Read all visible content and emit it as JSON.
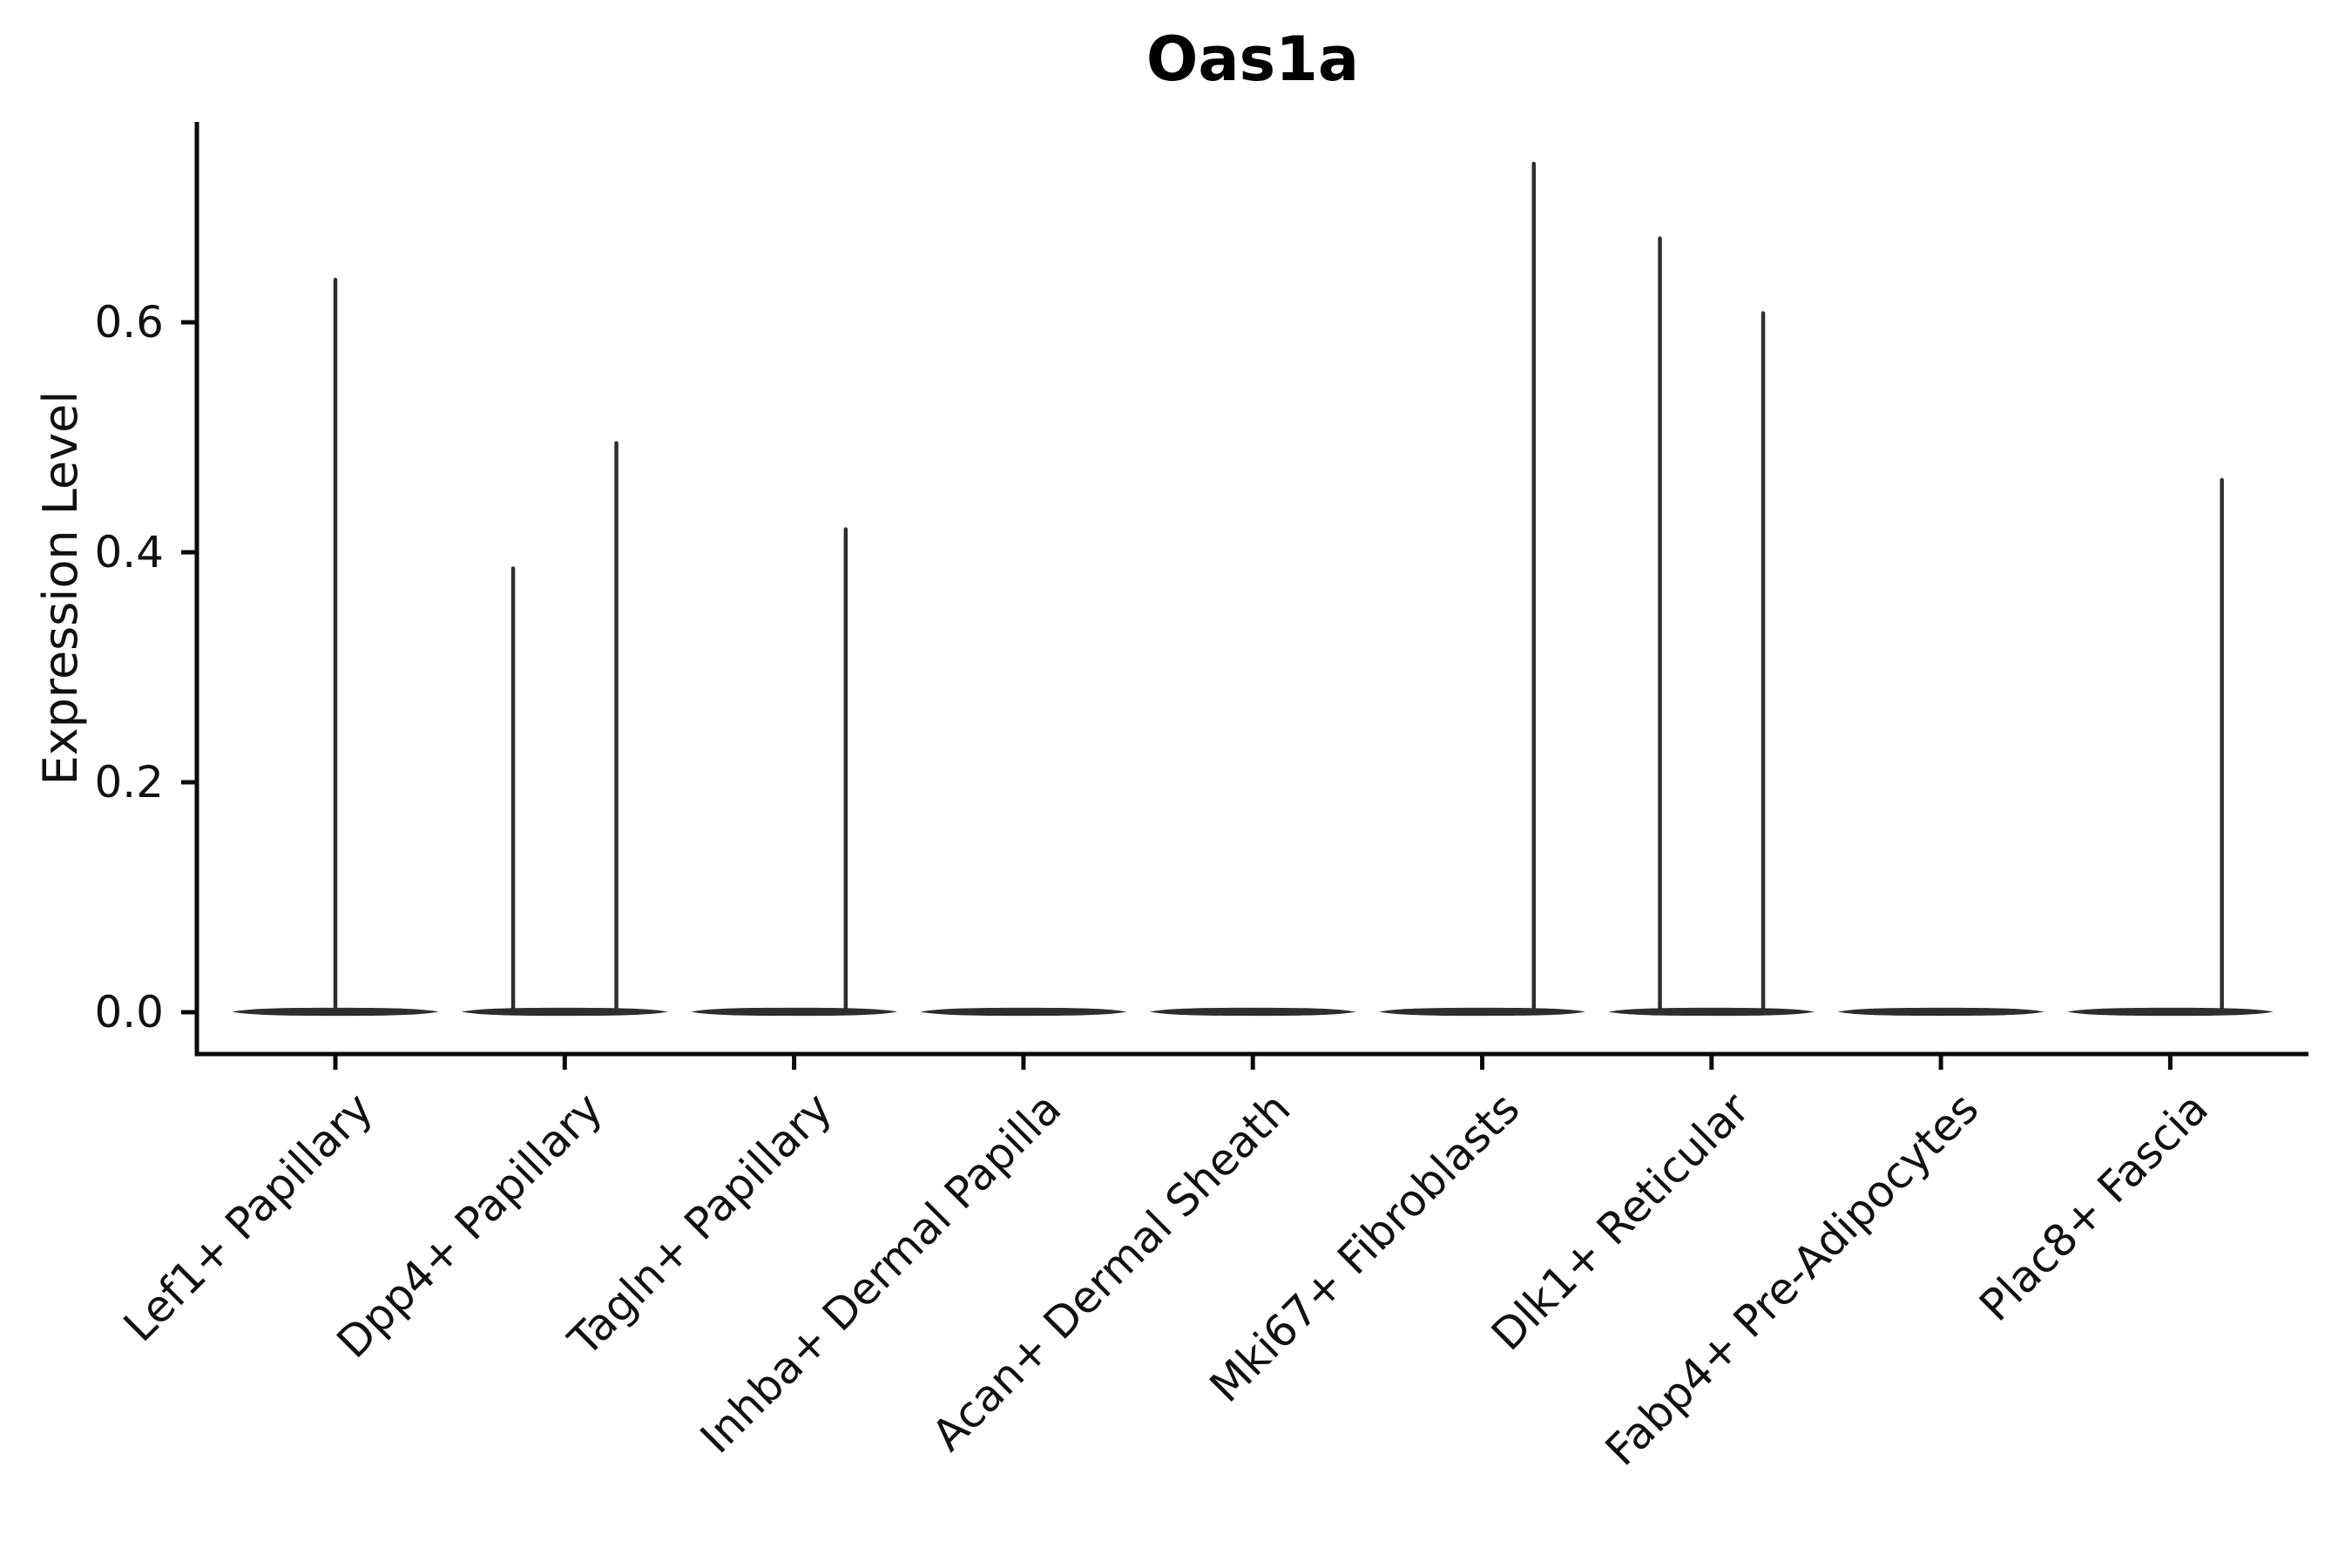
{
  "title": "Oas1a",
  "axes": {
    "ylabel": "Expression Level",
    "ytick_labels": [
      "0.0",
      "0.2",
      "0.4",
      "0.6"
    ]
  },
  "chart_data": {
    "type": "violin",
    "title": "Oas1a",
    "xlabel": "",
    "ylabel": "Expression Level",
    "ylim": [
      -0.036,
      0.774
    ],
    "yticks": [
      0.0,
      0.2,
      0.4,
      0.6
    ],
    "ytick_labels": [
      "0.0",
      "0.2",
      "0.4",
      "0.6"
    ],
    "grid": false,
    "legend": null,
    "categories": [
      "Lef1+ Papillary",
      "Dpp4+ Papillary",
      "Tagln+ Papillary",
      "Inhba+ Dermal Papilla",
      "Acan+ Dermal Sheath",
      "Mki67+ Fibroblasts",
      "Dlk1+ Reticular",
      "Fabp4+ Pre-Adipocytes",
      "Plac8+ Fascia"
    ],
    "series": [
      {
        "category": "Lef1+ Papillary",
        "baseline_value": 0,
        "baseline_halfwidth": 0.45,
        "spikes": [
          {
            "offset": 0.0,
            "value": 0.637
          }
        ]
      },
      {
        "category": "Dpp4+ Papillary",
        "baseline_value": 0,
        "baseline_halfwidth": 0.45,
        "spikes": [
          {
            "offset": -0.225,
            "value": 0.386
          },
          {
            "offset": 0.225,
            "value": 0.495
          }
        ]
      },
      {
        "category": "Tagln+ Papillary",
        "baseline_value": 0,
        "baseline_halfwidth": 0.45,
        "spikes": [
          {
            "offset": 0.225,
            "value": 0.42
          }
        ]
      },
      {
        "category": "Inhba+ Dermal Papilla",
        "baseline_value": 0,
        "baseline_halfwidth": 0.45,
        "spikes": []
      },
      {
        "category": "Acan+ Dermal Sheath",
        "baseline_value": 0,
        "baseline_halfwidth": 0.45,
        "spikes": []
      },
      {
        "category": "Mki67+ Fibroblasts",
        "baseline_value": 0,
        "baseline_halfwidth": 0.45,
        "spikes": [
          {
            "offset": 0.225,
            "value": 0.738
          }
        ]
      },
      {
        "category": "Dlk1+ Reticular",
        "baseline_value": 0,
        "baseline_halfwidth": 0.45,
        "spikes": [
          {
            "offset": -0.225,
            "value": 0.673
          },
          {
            "offset": 0.225,
            "value": 0.608
          }
        ]
      },
      {
        "category": "Fabp4+ Pre-Adipocytes",
        "baseline_value": 0,
        "baseline_halfwidth": 0.45,
        "spikes": []
      },
      {
        "category": "Plac8+ Fascia",
        "baseline_value": 0,
        "baseline_halfwidth": 0.45,
        "spikes": [
          {
            "offset": 0.225,
            "value": 0.463
          }
        ]
      }
    ],
    "colors": {
      "violin": "#2e2e2e",
      "spine": "#0a0a0a",
      "text": "#111111"
    }
  }
}
